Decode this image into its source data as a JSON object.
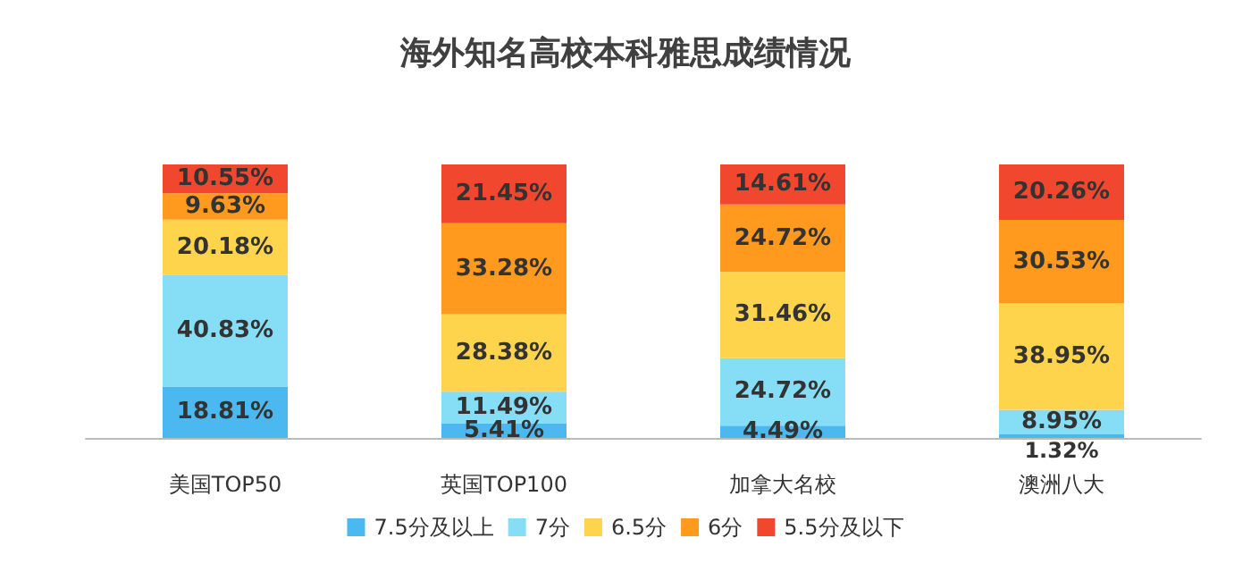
{
  "chart_data": {
    "type": "bar",
    "title": "海外知名高校本科雅思成绩情况",
    "categories": [
      "美国TOP50",
      "英国TOP100",
      "加拿大名校",
      "澳洲八大"
    ],
    "stacked": true,
    "legend": "bottom",
    "series": [
      {
        "name": "7.5分及以上",
        "color": "#4cb8f0",
        "values": [
          18.81,
          5.41,
          4.49,
          1.32
        ],
        "value_labels": [
          "18.81%",
          "5.41%",
          "4.49%",
          "1.32%"
        ]
      },
      {
        "name": "7分",
        "color": "#86ddf6",
        "values": [
          40.83,
          11.49,
          24.72,
          8.95
        ],
        "value_labels": [
          "40.83%",
          "11.49%",
          "24.72%",
          "8.95%"
        ]
      },
      {
        "name": "6.5分",
        "color": "#ffd44d",
        "values": [
          20.18,
          28.38,
          31.46,
          38.95
        ],
        "value_labels": [
          "20.18%",
          "28.38%",
          "31.46%",
          "38.95%"
        ]
      },
      {
        "name": "6分",
        "color": "#ff9a1f",
        "values": [
          9.63,
          33.28,
          24.72,
          30.53
        ],
        "value_labels": [
          "9.63%",
          "33.28%",
          "24.72%",
          "30.53%"
        ]
      },
      {
        "name": "5.5分及以下",
        "color": "#f2472f",
        "values": [
          10.55,
          21.45,
          14.61,
          20.26
        ],
        "value_labels": [
          "10.55%",
          "21.45%",
          "14.61%",
          "20.26%"
        ]
      }
    ]
  }
}
